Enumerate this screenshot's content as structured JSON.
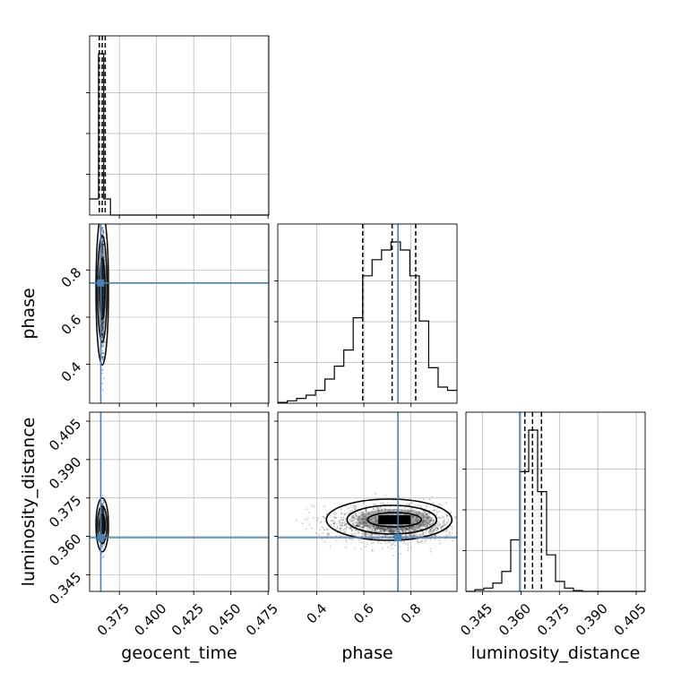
{
  "chart_data": {
    "type": "corner",
    "parameters": [
      "geocent_time",
      "phase",
      "luminosity_distance"
    ],
    "truth": {
      "geocent_time": 0.3625,
      "phase": 0.745,
      "luminosity_distance": 0.3595
    },
    "quantiles": {
      "geocent_time": [
        0.3615,
        0.3635,
        0.3655
      ],
      "phase": [
        0.595,
        0.72,
        0.82
      ],
      "luminosity_distance": [
        0.3615,
        0.3645,
        0.368
      ]
    },
    "axes": {
      "geocent_time": {
        "range": [
          0.355,
          0.4755
        ],
        "ticks": [
          0.375,
          0.4,
          0.425,
          0.45,
          0.475
        ],
        "tick_labels": [
          "0.375",
          "0.400",
          "0.425",
          "0.450",
          "0.475"
        ]
      },
      "phase": {
        "range": [
          0.235,
          0.995
        ],
        "ticks": [
          0.4,
          0.6,
          0.8
        ],
        "tick_labels": [
          "0.4",
          "0.6",
          "0.8"
        ]
      },
      "luminosity_distance": {
        "range": [
          0.3385,
          0.4085
        ],
        "ticks": [
          0.345,
          0.36,
          0.375,
          0.39,
          0.405
        ],
        "tick_labels": [
          "0.345",
          "0.360",
          "0.375",
          "0.390",
          "0.405"
        ]
      }
    },
    "histograms": {
      "geocent_time": {
        "edges": [
          0.355,
          0.359,
          0.361,
          0.3615,
          0.3645,
          0.365,
          0.369,
          0.4755
        ],
        "values": [
          0.1,
          0.1,
          1.0,
          1.0,
          0.1,
          0.1,
          0.0
        ]
      },
      "phase": {
        "edges": [
          0.235,
          0.275,
          0.315,
          0.355,
          0.395,
          0.435,
          0.475,
          0.515,
          0.555,
          0.595,
          0.635,
          0.675,
          0.715,
          0.755,
          0.795,
          0.835,
          0.875,
          0.915,
          0.955,
          0.995
        ],
        "values": [
          0.005,
          0.015,
          0.03,
          0.05,
          0.08,
          0.15,
          0.23,
          0.33,
          0.53,
          0.79,
          0.89,
          0.95,
          1.0,
          0.95,
          0.79,
          0.51,
          0.22,
          0.1,
          0.08
        ]
      },
      "luminosity_distance": {
        "edges": [
          0.3385,
          0.342,
          0.3455,
          0.349,
          0.3525,
          0.356,
          0.3595,
          0.363,
          0.3665,
          0.37,
          0.3735,
          0.377,
          0.3805,
          0.384,
          0.4085
        ],
        "values": [
          0.0,
          0.01,
          0.02,
          0.05,
          0.12,
          0.31,
          0.72,
          0.97,
          0.6,
          0.22,
          0.06,
          0.02,
          0.005,
          0.0
        ]
      }
    },
    "grid": true
  }
}
